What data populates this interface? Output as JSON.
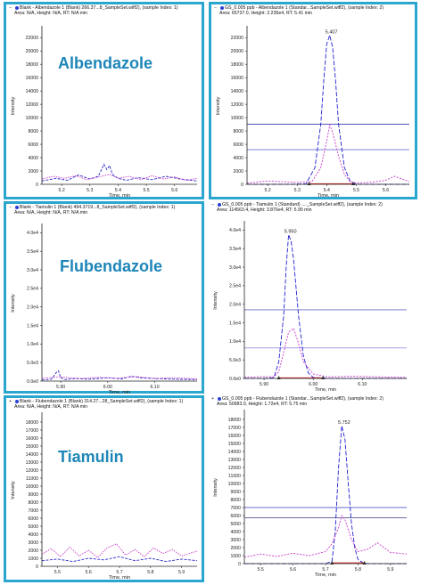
{
  "chart_data": [
    {
      "type": "line",
      "header": [
        "Blank - Albendazole 1 (Blank) 266.37...8_SampleSet.wiff2), (sample Index: 1)",
        "Area: N/A, Height: N/A, RT: N/A min"
      ],
      "compound": "Albendazole",
      "highlight": true,
      "xlabel": "Time, min",
      "ylabel": "Intensity",
      "xlim": [
        5.13,
        5.68
      ],
      "ylim": [
        0,
        23500
      ],
      "xticks": [
        {
          "v": 5.2,
          "t": "5.2"
        },
        {
          "v": 5.3,
          "t": "5.3"
        },
        {
          "v": 5.4,
          "t": "5.4"
        },
        {
          "v": 5.5,
          "t": "5.5"
        },
        {
          "v": 5.6,
          "t": "5.6"
        }
      ],
      "yticks": [
        {
          "v": 0,
          "t": "0"
        },
        {
          "v": 2000,
          "t": "2000"
        },
        {
          "v": 4000,
          "t": "4000"
        },
        {
          "v": 6000,
          "t": "6000"
        },
        {
          "v": 8000,
          "t": "8000"
        },
        {
          "v": 10000,
          "t": "10000"
        },
        {
          "v": 12000,
          "t": "12000"
        },
        {
          "v": 14000,
          "t": "14000"
        },
        {
          "v": 16000,
          "t": "16000"
        },
        {
          "v": 18000,
          "t": "18000"
        },
        {
          "v": 20000,
          "t": "20000"
        },
        {
          "v": 22000,
          "t": "22000"
        }
      ],
      "hlines": [],
      "baseline": null,
      "markers": [],
      "peak_label": null,
      "series": [
        {
          "color": "#2828c8",
          "dash": "3,1.5",
          "x": [
            5.13,
            5.18,
            5.22,
            5.26,
            5.3,
            5.33,
            5.35,
            5.36,
            5.37,
            5.38,
            5.4,
            5.43,
            5.47,
            5.52,
            5.57,
            5.62,
            5.68
          ],
          "y": [
            500,
            900,
            600,
            1400,
            800,
            1200,
            3000,
            2200,
            2800,
            1500,
            900,
            600,
            1000,
            700,
            1200,
            800,
            500
          ]
        },
        {
          "color": "#c83cc8",
          "dash": "1.5,1.2",
          "x": [
            5.13,
            5.17,
            5.21,
            5.25,
            5.29,
            5.33,
            5.37,
            5.4,
            5.44,
            5.48,
            5.52,
            5.56,
            5.6,
            5.64,
            5.68
          ],
          "y": [
            800,
            1200,
            900,
            1300,
            700,
            1100,
            1500,
            900,
            1200,
            700,
            1300,
            800,
            1100,
            600,
            900
          ]
        }
      ]
    },
    {
      "type": "line",
      "header": [
        "GS_0.005 ppb - Albendazole 1 (Standar...SampleSet.wiff2), (sample Index: 2)",
        "Area: 65737.0, Height: 2.236e4, RT: 5.41 min"
      ],
      "compound": "",
      "highlight": true,
      "xlabel": "Time, min",
      "ylabel": "Intensity",
      "xlim": [
        5.13,
        5.68
      ],
      "ylim": [
        0,
        23500
      ],
      "xticks": [
        {
          "v": 5.2,
          "t": "5.2"
        },
        {
          "v": 5.3,
          "t": "5.3"
        },
        {
          "v": 5.4,
          "t": "5.4"
        },
        {
          "v": 5.5,
          "t": "5.5"
        },
        {
          "v": 5.6,
          "t": "5.6"
        }
      ],
      "yticks": [
        {
          "v": 0,
          "t": "0"
        },
        {
          "v": 2000,
          "t": "2000"
        },
        {
          "v": 4000,
          "t": "4000"
        },
        {
          "v": 6000,
          "t": "6000"
        },
        {
          "v": 8000,
          "t": "8000"
        },
        {
          "v": 10000,
          "t": "10000"
        },
        {
          "v": 12000,
          "t": "12000"
        },
        {
          "v": 14000,
          "t": "14000"
        },
        {
          "v": 16000,
          "t": "16000"
        },
        {
          "v": 18000,
          "t": "18000"
        },
        {
          "v": 20000,
          "t": "20000"
        },
        {
          "v": 22000,
          "t": "22000"
        }
      ],
      "hlines": [
        {
          "y": 9000,
          "color": "#1d1d9a"
        },
        {
          "y": 5200,
          "color": "#3838c0"
        }
      ],
      "baseline": {
        "x0": 5.34,
        "x1": 5.49,
        "y": 80,
        "color": "#d02020"
      },
      "markers": [
        5.34,
        5.49
      ],
      "peak_label": {
        "x": 5.41,
        "y": 22360,
        "text": "5.407"
      },
      "series": [
        {
          "color": "#2020d0",
          "dash": "5,2",
          "x": [
            5.13,
            5.2,
            5.28,
            5.33,
            5.36,
            5.38,
            5.39,
            5.4,
            5.41,
            5.42,
            5.43,
            5.44,
            5.46,
            5.48,
            5.5,
            5.55,
            5.6,
            5.68
          ],
          "y": [
            0,
            0,
            0,
            100,
            2500,
            9000,
            15500,
            21000,
            22360,
            20500,
            15500,
            9000,
            2500,
            400,
            0,
            0,
            0,
            0
          ]
        },
        {
          "color": "#c838c8",
          "dash": "2,1.5",
          "x": [
            5.13,
            5.2,
            5.3,
            5.35,
            5.38,
            5.4,
            5.41,
            5.42,
            5.44,
            5.46,
            5.48,
            5.5,
            5.55,
            5.6,
            5.63,
            5.68
          ],
          "y": [
            200,
            500,
            300,
            400,
            2500,
            6500,
            8900,
            7800,
            4200,
            1500,
            400,
            200,
            300,
            600,
            1200,
            400
          ]
        }
      ]
    },
    {
      "type": "line",
      "header": [
        "Blank - Tiamulin 1 (Blank) 494.3719...8_SampleSet.wiff2), (sample Index: 1)",
        "Area: N/A, Height: N/A, RT: N/A min"
      ],
      "compound": "Flubendazole",
      "highlight": true,
      "xlabel": "Time, min",
      "ylabel": "Intensity",
      "xlim": [
        5.86,
        6.19
      ],
      "ylim": [
        0,
        42000
      ],
      "xticks": [
        {
          "v": 5.9,
          "t": "5.90"
        },
        {
          "v": 6.0,
          "t": "6.00"
        },
        {
          "v": 6.1,
          "t": "6.10"
        }
      ],
      "yticks": [
        {
          "v": 0,
          "t": "0.0e0"
        },
        {
          "v": 5000,
          "t": "5.0e3"
        },
        {
          "v": 10000,
          "t": "1.0e4"
        },
        {
          "v": 15000,
          "t": "1.5e4"
        },
        {
          "v": 20000,
          "t": "2.0e4"
        },
        {
          "v": 25000,
          "t": "2.5e4"
        },
        {
          "v": 30000,
          "t": "3.0e4"
        },
        {
          "v": 35000,
          "t": "3.5e4"
        },
        {
          "v": 40000,
          "t": "4.0e4"
        }
      ],
      "hlines": [],
      "baseline": null,
      "markers": [],
      "peak_label": null,
      "series": [
        {
          "color": "#2828c8",
          "dash": "3,1.5",
          "x": [
            5.86,
            5.88,
            5.89,
            5.895,
            5.9,
            5.91,
            5.93,
            5.96,
            6.0,
            6.03,
            6.05,
            6.07,
            6.1,
            6.14,
            6.19
          ],
          "y": [
            300,
            500,
            2200,
            2800,
            900,
            400,
            700,
            500,
            900,
            600,
            1300,
            900,
            700,
            500,
            400
          ]
        },
        {
          "color": "#c83cc8",
          "dash": "1.5,1.2",
          "x": [
            5.86,
            5.9,
            5.94,
            5.98,
            6.02,
            6.06,
            6.1,
            6.14,
            6.19
          ],
          "y": [
            800,
            1100,
            700,
            1000,
            800,
            1200,
            700,
            900,
            600
          ]
        }
      ]
    },
    {
      "type": "line",
      "header": [
        "GS_0.005 ppb - Tiamulin 1 (Standard) ...._SampleSet.wiff2), (sample Index: 2)",
        "Area: 114563.4, Height: 3.876e4, RT: 5.95 min"
      ],
      "compound": "",
      "highlight": false,
      "xlabel": "Time, min",
      "ylabel": "Intensity",
      "xlim": [
        5.86,
        6.19
      ],
      "ylim": [
        0,
        42000
      ],
      "xticks": [
        {
          "v": 5.9,
          "t": "5.90"
        },
        {
          "v": 6.0,
          "t": "6.00"
        },
        {
          "v": 6.1,
          "t": "6.10"
        }
      ],
      "yticks": [
        {
          "v": 0,
          "t": "0.0e0"
        },
        {
          "v": 5000,
          "t": "5.0e3"
        },
        {
          "v": 10000,
          "t": "1.0e4"
        },
        {
          "v": 15000,
          "t": "1.5e4"
        },
        {
          "v": 20000,
          "t": "2.0e4"
        },
        {
          "v": 25000,
          "t": "2.5e4"
        },
        {
          "v": 30000,
          "t": "3.0e4"
        },
        {
          "v": 35000,
          "t": "3.5e4"
        },
        {
          "v": 40000,
          "t": "4.0e4"
        }
      ],
      "hlines": [
        {
          "y": 18500,
          "color": "#3030b0"
        },
        {
          "y": 8200,
          "color": "#6a6ad8"
        }
      ],
      "baseline": {
        "x0": 5.93,
        "x1": 6.02,
        "y": 150,
        "color": "#d02020"
      },
      "markers": [
        5.93,
        6.02
      ],
      "peak_label": {
        "x": 5.95,
        "y": 38760,
        "text": "5.950"
      },
      "series": [
        {
          "color": "#2020d0",
          "dash": "5,2",
          "x": [
            5.86,
            5.9,
            5.92,
            5.93,
            5.94,
            5.945,
            5.95,
            5.955,
            5.96,
            5.97,
            5.98,
            5.99,
            6.0,
            6.03,
            6.08,
            6.19
          ],
          "y": [
            0,
            0,
            200,
            4500,
            17000,
            30000,
            38760,
            37000,
            32000,
            17000,
            6000,
            1500,
            300,
            0,
            0,
            0
          ]
        },
        {
          "color": "#c838c8",
          "dash": "2,1.5",
          "x": [
            5.86,
            5.9,
            5.92,
            5.93,
            5.94,
            5.95,
            5.96,
            5.97,
            5.98,
            6.0,
            6.03,
            6.08,
            6.14,
            6.19
          ],
          "y": [
            300,
            500,
            400,
            1800,
            7000,
            12500,
            13500,
            9500,
            4500,
            1200,
            400,
            600,
            400,
            300
          ]
        }
      ]
    },
    {
      "type": "line",
      "header": [
        "Blank - Flubendazole 1 (Blank) 314.27...28_SampleSet.wiff2), (sample Index: 1)",
        "Area: N/A, Height: N/A, RT: N/A min"
      ],
      "compound": "Tiamulin",
      "highlight": true,
      "xlabel": "Time, min",
      "ylabel": "Intensity",
      "xlim": [
        5.45,
        5.95
      ],
      "ylim": [
        0,
        19000
      ],
      "xticks": [
        {
          "v": 5.5,
          "t": "5.5"
        },
        {
          "v": 5.6,
          "t": "5.6"
        },
        {
          "v": 5.7,
          "t": "5.7"
        },
        {
          "v": 5.8,
          "t": "5.8"
        },
        {
          "v": 5.9,
          "t": "5.9"
        }
      ],
      "yticks": [
        {
          "v": 0,
          "t": "0"
        },
        {
          "v": 1000,
          "t": "1000"
        },
        {
          "v": 2000,
          "t": "2000"
        },
        {
          "v": 3000,
          "t": "3000"
        },
        {
          "v": 4000,
          "t": "4000"
        },
        {
          "v": 5000,
          "t": "5000"
        },
        {
          "v": 6000,
          "t": "6000"
        },
        {
          "v": 7000,
          "t": "7000"
        },
        {
          "v": 8000,
          "t": "8000"
        },
        {
          "v": 9000,
          "t": "9000"
        },
        {
          "v": 10000,
          "t": "10000"
        },
        {
          "v": 11000,
          "t": "11000"
        },
        {
          "v": 12000,
          "t": "12000"
        },
        {
          "v": 13000,
          "t": "13000"
        },
        {
          "v": 14000,
          "t": "14000"
        },
        {
          "v": 15000,
          "t": "15000"
        },
        {
          "v": 16000,
          "t": "16000"
        },
        {
          "v": 17000,
          "t": "17000"
        },
        {
          "v": 18000,
          "t": "18000"
        }
      ],
      "hlines": [],
      "baseline": null,
      "markers": [],
      "peak_label": null,
      "series": [
        {
          "color": "#2828c8",
          "dash": "3,1.5",
          "x": [
            5.45,
            5.5,
            5.55,
            5.6,
            5.65,
            5.7,
            5.75,
            5.8,
            5.85,
            5.9,
            5.95
          ],
          "y": [
            700,
            900,
            600,
            1000,
            800,
            1200,
            700,
            1000,
            600,
            900,
            700
          ]
        },
        {
          "color": "#c83cc8",
          "dash": "1.5,1.2",
          "x": [
            5.45,
            5.48,
            5.51,
            5.54,
            5.57,
            5.6,
            5.63,
            5.66,
            5.69,
            5.72,
            5.75,
            5.78,
            5.81,
            5.84,
            5.87,
            5.9,
            5.95
          ],
          "y": [
            1500,
            2200,
            1200,
            2400,
            1300,
            2000,
            1100,
            2300,
            2800,
            1400,
            2100,
            1200,
            2300,
            1600,
            2100,
            1300,
            1900
          ]
        }
      ]
    },
    {
      "type": "line",
      "header": [
        "GS_0.005 ppb - Flubendazole 1 (Standar...SampleSet.wiff2), (sample Index: 2)",
        "Area: 50983.0, Height: 1.72e4, RT: 5.75 min"
      ],
      "compound": "",
      "highlight": false,
      "xlabel": "Time, min",
      "ylabel": "Intensity",
      "xlim": [
        5.45,
        5.95
      ],
      "ylim": [
        0,
        19000
      ],
      "xticks": [
        {
          "v": 5.5,
          "t": "5.5"
        },
        {
          "v": 5.6,
          "t": "5.6"
        },
        {
          "v": 5.7,
          "t": "5.7"
        },
        {
          "v": 5.8,
          "t": "5.8"
        },
        {
          "v": 5.9,
          "t": "5.9"
        }
      ],
      "yticks": [
        {
          "v": 0,
          "t": "0"
        },
        {
          "v": 1000,
          "t": "1000"
        },
        {
          "v": 2000,
          "t": "2000"
        },
        {
          "v": 3000,
          "t": "3000"
        },
        {
          "v": 4000,
          "t": "4000"
        },
        {
          "v": 5000,
          "t": "5000"
        },
        {
          "v": 6000,
          "t": "6000"
        },
        {
          "v": 7000,
          "t": "7000"
        },
        {
          "v": 8000,
          "t": "8000"
        },
        {
          "v": 9000,
          "t": "9000"
        },
        {
          "v": 10000,
          "t": "10000"
        },
        {
          "v": 11000,
          "t": "11000"
        },
        {
          "v": 12000,
          "t": "12000"
        },
        {
          "v": 13000,
          "t": "13000"
        },
        {
          "v": 14000,
          "t": "14000"
        },
        {
          "v": 15000,
          "t": "15000"
        },
        {
          "v": 16000,
          "t": "16000"
        },
        {
          "v": 17000,
          "t": "17000"
        },
        {
          "v": 18000,
          "t": "18000"
        }
      ],
      "hlines": [
        {
          "y": 7000,
          "color": "#3636c8"
        },
        {
          "y": 5700,
          "color": "#15156a"
        }
      ],
      "baseline": {
        "x0": 5.72,
        "x1": 5.82,
        "y": 100,
        "color": "#d02020"
      },
      "markers": [
        5.72,
        5.82
      ],
      "peak_label": {
        "x": 5.752,
        "y": 17200,
        "text": "5.752"
      },
      "series": [
        {
          "color": "#2020d0",
          "dash": "5,2",
          "x": [
            5.45,
            5.6,
            5.7,
            5.72,
            5.73,
            5.74,
            5.75,
            5.76,
            5.77,
            5.78,
            5.79,
            5.8,
            5.82,
            5.85,
            5.95
          ],
          "y": [
            0,
            0,
            0,
            300,
            4000,
            12000,
            17200,
            15500,
            10000,
            5000,
            2000,
            500,
            0,
            0,
            0
          ]
        },
        {
          "color": "#c838c8",
          "dash": "2,1.5",
          "x": [
            5.45,
            5.5,
            5.55,
            5.6,
            5.65,
            5.7,
            5.72,
            5.74,
            5.75,
            5.76,
            5.78,
            5.8,
            5.83,
            5.86,
            5.9,
            5.95
          ],
          "y": [
            800,
            1200,
            900,
            1300,
            1000,
            1500,
            2500,
            4500,
            6000,
            5500,
            3000,
            1500,
            1800,
            2600,
            1400,
            1200
          ]
        }
      ]
    }
  ]
}
